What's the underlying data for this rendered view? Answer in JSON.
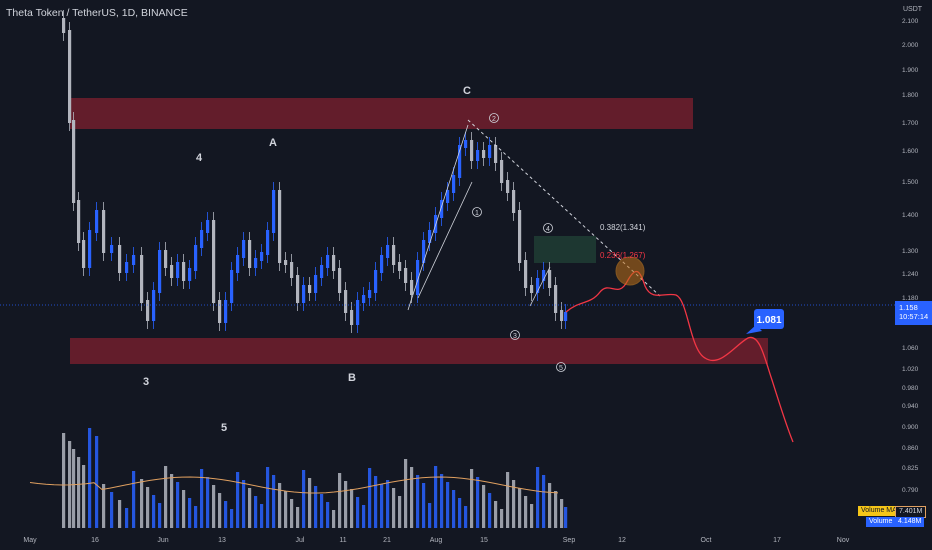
{
  "header": {
    "symbol_line": "Theta Token / TetherUS, 1D, BINANCE"
  },
  "price_axis": {
    "currency": "USDT",
    "ticks": [
      "2.100",
      "2.000",
      "1.900",
      "1.800",
      "1.700",
      "1.600",
      "1.500",
      "1.400",
      "1.300",
      "1.240",
      "1.180",
      "1.120",
      "1.060",
      "1.020",
      "0.980",
      "0.940",
      "0.900",
      "0.860",
      "0.825",
      "0.790",
      "0.750"
    ]
  },
  "time_axis": {
    "labels": [
      "May",
      "16",
      "Jun",
      "13",
      "Jul",
      "11",
      "21",
      "Aug",
      "15",
      "Sep",
      "12",
      "Oct",
      "17",
      "Nov"
    ]
  },
  "current_price": {
    "value": "1.158",
    "countdown": "10:57:14"
  },
  "projection_label": "1.081",
  "fib_labels": {
    "upper": "0.382(1.341)",
    "lower": "0.236(1.267)"
  },
  "wave_labels": {
    "w3": "3",
    "w4": "4",
    "w5": "5",
    "wA": "A",
    "wB": "B",
    "wC": "C",
    "c1": "1",
    "c2": "2",
    "c3": "3",
    "c4": "4",
    "c5": "5"
  },
  "volume_tags": {
    "ma_label": "Volume MA",
    "ma_value": "7.401M",
    "vol_label": "Volume",
    "vol_value": "4.148M"
  },
  "colors": {
    "background": "#131722",
    "bull": "#2962ff",
    "bear": "#b2b5be",
    "zone": "#7a1f2e",
    "projection": "#f23645",
    "volume_ma": "#e0a060",
    "fib_red": "#f23645"
  },
  "chart_data": {
    "type": "candlestick",
    "series": [
      {
        "name": "Volume MA",
        "value": "7.401M"
      },
      {
        "name": "Volume",
        "value": "4.148M"
      }
    ],
    "price_zones": [
      {
        "from": 1.68,
        "to": 1.78
      },
      {
        "from": 1.025,
        "to": 1.065
      }
    ],
    "fib_levels": [
      {
        "ratio": 0.382,
        "price": 1.341
      },
      {
        "ratio": 0.236,
        "price": 1.267
      }
    ],
    "projection_target": 1.081,
    "last_price": 1.158
  }
}
